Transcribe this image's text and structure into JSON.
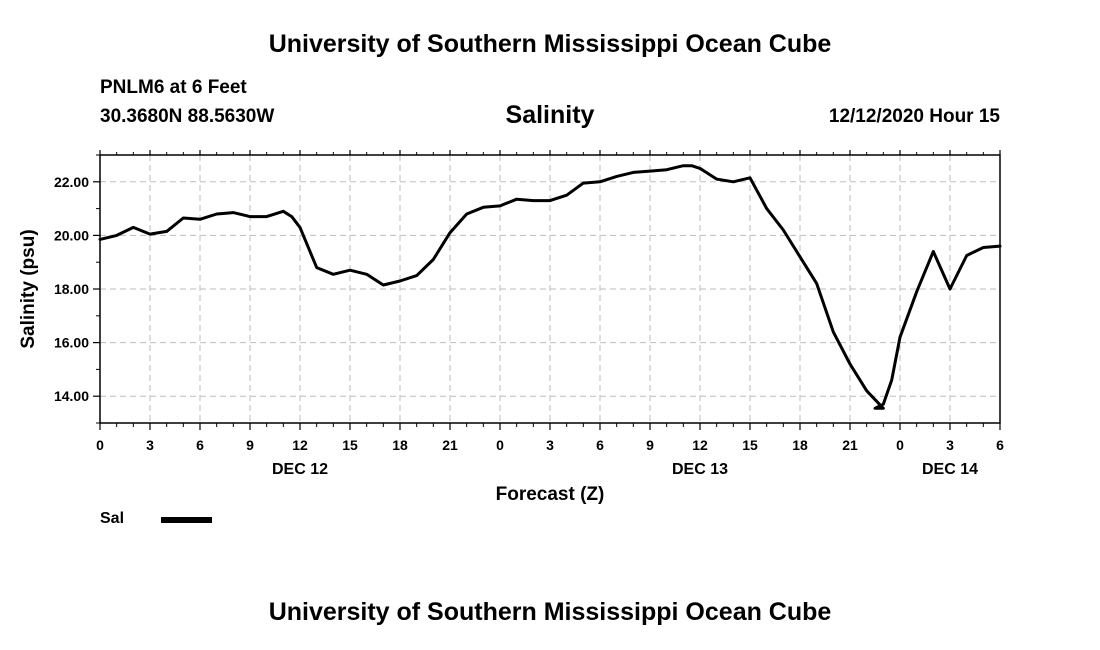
{
  "header": {
    "title": "University of Southern Mississippi Ocean Cube"
  },
  "station": {
    "name": "PNLM6 at 6 Feet",
    "coords": "30.3680N 88.5630W"
  },
  "timestamp": "12/12/2020 Hour 15",
  "footer": {
    "title": "University of Southern Mississippi Ocean Cube"
  },
  "legend": {
    "label": "Sal",
    "color": "#000000"
  },
  "chart_data": {
    "type": "line",
    "title": "Salinity",
    "xlabel": "Forecast (Z)",
    "ylabel": "Salinity (psu)",
    "xlim": [
      0,
      54
    ],
    "ylim": [
      13,
      23
    ],
    "y_ticks": [
      14,
      16,
      18,
      20,
      22
    ],
    "y_tick_labels": [
      "14.00",
      "16.00",
      "18.00",
      "20.00",
      "22.00"
    ],
    "x_ticks": [
      0,
      3,
      6,
      9,
      12,
      15,
      18,
      21,
      24,
      27,
      30,
      33,
      36,
      39,
      42,
      45,
      48,
      51,
      54
    ],
    "x_tick_labels": [
      "0",
      "3",
      "6",
      "9",
      "12",
      "15",
      "18",
      "21",
      "0",
      "3",
      "6",
      "9",
      "12",
      "15",
      "18",
      "21",
      "0",
      "3",
      "6"
    ],
    "day_labels": [
      {
        "x": 12,
        "label": "DEC 12"
      },
      {
        "x": 36,
        "label": "DEC 13"
      },
      {
        "x": 51,
        "label": "DEC 14"
      }
    ],
    "grid": true,
    "legend_position": "bottom-left",
    "series": [
      {
        "name": "Sal",
        "x": [
          0,
          1,
          2,
          3,
          4,
          5,
          6,
          7,
          8,
          9,
          10,
          11,
          11.5,
          12,
          13,
          14,
          15,
          16,
          17,
          18,
          19,
          20,
          21,
          22,
          23,
          24,
          25,
          26,
          27,
          28,
          29,
          30,
          31,
          32,
          33,
          34,
          35,
          35.5,
          36,
          37,
          38,
          39,
          40,
          41,
          42,
          43,
          44,
          45,
          46,
          47,
          46.5,
          47,
          47.5,
          48,
          49,
          50,
          51,
          52,
          53,
          54
        ],
        "values": [
          19.85,
          20.0,
          20.3,
          20.05,
          20.15,
          20.65,
          20.6,
          20.8,
          20.85,
          20.7,
          20.7,
          20.9,
          20.7,
          20.3,
          18.8,
          18.55,
          18.7,
          18.55,
          18.15,
          18.3,
          18.5,
          19.1,
          20.1,
          20.8,
          21.05,
          21.1,
          21.35,
          21.3,
          21.3,
          21.5,
          21.95,
          22.0,
          22.2,
          22.35,
          22.4,
          22.45,
          22.6,
          22.6,
          22.5,
          22.1,
          22.0,
          22.15,
          21.0,
          20.2,
          19.2,
          18.2,
          16.4,
          15.2,
          14.2,
          13.55,
          13.55,
          13.7,
          14.6,
          16.2,
          17.9,
          19.4,
          18.0,
          19.25,
          19.55,
          19.6
        ]
      }
    ]
  }
}
